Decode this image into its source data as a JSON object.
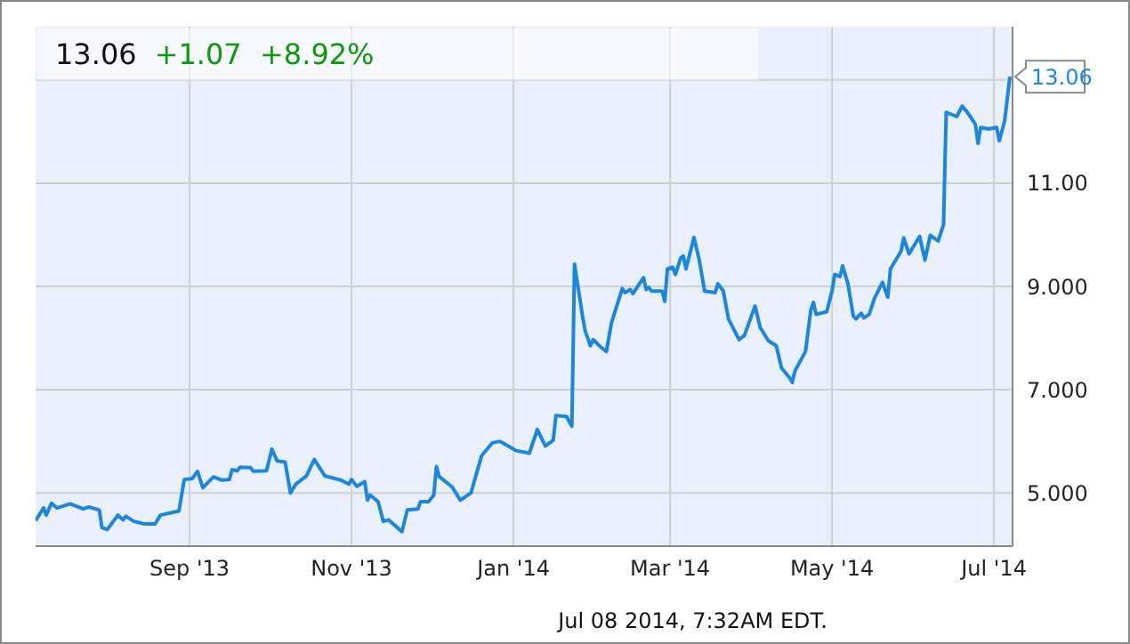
{
  "chart_data": {
    "type": "line",
    "title": "13.06",
    "subtitle": "+1.07  +8.92%",
    "x": [
      "2013-07-05",
      "2013-07-08",
      "2013-07-09",
      "2013-07-11",
      "2013-07-13",
      "2013-07-18",
      "2013-07-23",
      "2013-07-25",
      "2013-07-29",
      "2013-07-30",
      "2013-08-01",
      "2013-08-05",
      "2013-08-07",
      "2013-08-08",
      "2013-08-11",
      "2013-08-15",
      "2013-08-19",
      "2013-08-21",
      "2013-08-28",
      "2013-08-30",
      "2013-09-02",
      "2013-09-04",
      "2013-09-06",
      "2013-09-10",
      "2013-09-13",
      "2013-09-16",
      "2013-09-17",
      "2013-09-19",
      "2013-09-20",
      "2013-09-24",
      "2013-09-25",
      "2013-09-30",
      "2013-10-02",
      "2013-10-04",
      "2013-10-07",
      "2013-10-09",
      "2013-10-11",
      "2013-10-15",
      "2013-10-18",
      "2013-10-22",
      "2013-10-28",
      "2013-10-31",
      "2013-11-01",
      "2013-11-03",
      "2013-11-06",
      "2013-11-07",
      "2013-11-08",
      "2013-11-11",
      "2013-11-13",
      "2013-11-15",
      "2013-11-20",
      "2013-11-22",
      "2013-11-26",
      "2013-11-27",
      "2013-11-30",
      "2013-12-02",
      "2013-12-03",
      "2013-12-04",
      "2013-12-09",
      "2013-12-12",
      "2013-12-16",
      "2013-12-20",
      "2013-12-24",
      "2013-12-27",
      "2014-01-02",
      "2014-01-07",
      "2014-01-10",
      "2014-01-13",
      "2014-01-16",
      "2014-01-17",
      "2014-01-21",
      "2014-01-23",
      "2014-01-24",
      "2014-01-27",
      "2014-01-28",
      "2014-01-30",
      "2014-01-31",
      "2014-02-03",
      "2014-02-05",
      "2014-02-07",
      "2014-02-11",
      "2014-02-12",
      "2014-02-14",
      "2014-02-15",
      "2014-02-19",
      "2014-02-20",
      "2014-02-21",
      "2014-02-22",
      "2014-02-26",
      "2014-02-27",
      "2014-02-28",
      "2014-03-02",
      "2014-03-03",
      "2014-03-05",
      "2014-03-06",
      "2014-03-07",
      "2014-03-10",
      "2014-03-12",
      "2014-03-14",
      "2014-03-18",
      "2014-03-19",
      "2014-03-21",
      "2014-03-23",
      "2014-03-27",
      "2014-03-29",
      "2014-04-02",
      "2014-04-04",
      "2014-04-07",
      "2014-04-10",
      "2014-04-12",
      "2014-04-15",
      "2014-04-16",
      "2014-04-17",
      "2014-04-21",
      "2014-04-23",
      "2014-04-24",
      "2014-04-25",
      "2014-04-29",
      "2014-05-01",
      "2014-05-02",
      "2014-05-04",
      "2014-05-05",
      "2014-05-07",
      "2014-05-09",
      "2014-05-10",
      "2014-05-12",
      "2014-05-13",
      "2014-05-15",
      "2014-05-17",
      "2014-05-20",
      "2014-05-22",
      "2014-05-23",
      "2014-05-27",
      "2014-05-28",
      "2014-05-30",
      "2014-06-03",
      "2014-06-05",
      "2014-06-07",
      "2014-06-10",
      "2014-06-12",
      "2014-06-13",
      "2014-06-17",
      "2014-06-19",
      "2014-06-21",
      "2014-06-24",
      "2014-06-25",
      "2014-06-26",
      "2014-06-29",
      "2014-07-02",
      "2014-07-03",
      "2014-07-05",
      "2014-07-07"
    ],
    "series": [
      {
        "color": "#1a86e0",
        "values": [
          4.46,
          4.71,
          4.57,
          4.8,
          4.71,
          4.79,
          4.69,
          4.73,
          4.67,
          4.33,
          4.29,
          4.57,
          4.48,
          4.55,
          4.45,
          4.4,
          4.4,
          4.57,
          4.65,
          5.26,
          5.28,
          5.42,
          5.1,
          5.31,
          5.25,
          5.26,
          5.45,
          5.43,
          5.5,
          5.49,
          5.42,
          5.43,
          5.85,
          5.62,
          5.6,
          5.0,
          5.17,
          5.33,
          5.65,
          5.33,
          5.25,
          5.17,
          5.26,
          5.13,
          5.22,
          4.86,
          4.96,
          4.83,
          4.45,
          4.48,
          4.25,
          4.67,
          4.69,
          4.83,
          4.83,
          4.96,
          5.51,
          5.32,
          5.11,
          4.86,
          5.0,
          5.72,
          5.97,
          6.0,
          5.82,
          5.77,
          6.23,
          5.91,
          6.02,
          6.5,
          6.48,
          6.29,
          9.43,
          8.43,
          8.14,
          7.85,
          7.97,
          7.82,
          7.74,
          8.31,
          8.96,
          8.88,
          8.94,
          8.86,
          9.17,
          8.94,
          8.98,
          8.91,
          8.91,
          8.71,
          9.34,
          9.37,
          9.23,
          9.55,
          9.59,
          9.34,
          9.95,
          9.51,
          8.91,
          8.88,
          9.05,
          8.92,
          8.37,
          7.97,
          8.05,
          8.62,
          8.2,
          7.95,
          7.85,
          7.42,
          7.23,
          7.14,
          7.36,
          7.74,
          8.54,
          8.69,
          8.46,
          8.51,
          8.91,
          9.23,
          9.19,
          9.4,
          9.05,
          8.43,
          8.37,
          8.48,
          8.39,
          8.46,
          8.77,
          9.08,
          8.79,
          9.34,
          9.68,
          9.94,
          9.63,
          9.97,
          9.51,
          9.99,
          9.88,
          10.2,
          12.37,
          12.29,
          12.49,
          12.37,
          12.14,
          11.77,
          12.08,
          12.05,
          12.08,
          11.82,
          12.2,
          13.06
        ]
      }
    ],
    "xlim": [
      "2013-07-05",
      "2014-07-08"
    ],
    "xticks": [
      {
        "value": "2013-09-01",
        "label": "Sep '13"
      },
      {
        "value": "2013-11-01",
        "label": "Nov '13"
      },
      {
        "value": "2014-01-01",
        "label": "Jan '14"
      },
      {
        "value": "2014-03-01",
        "label": "Mar '14"
      },
      {
        "value": "2014-05-01",
        "label": "May '14"
      },
      {
        "value": "2014-07-01",
        "label": "Jul '14"
      }
    ],
    "ylim": [
      3.97,
      14.03
    ],
    "yticks": [
      {
        "value": 5,
        "label": "5.000"
      },
      {
        "value": 7,
        "label": "7.000"
      },
      {
        "value": 9,
        "label": "9.000"
      },
      {
        "value": 11,
        "label": "11.00"
      },
      {
        "value": 13,
        "label": null
      }
    ],
    "grid": true,
    "marker": "none",
    "line_style": "solid",
    "annotations": [
      {
        "text": "13.06",
        "x": "2014-07-07",
        "y": 13.06
      },
      "Jul 08 2014, 7:32AM EDT."
    ]
  }
}
